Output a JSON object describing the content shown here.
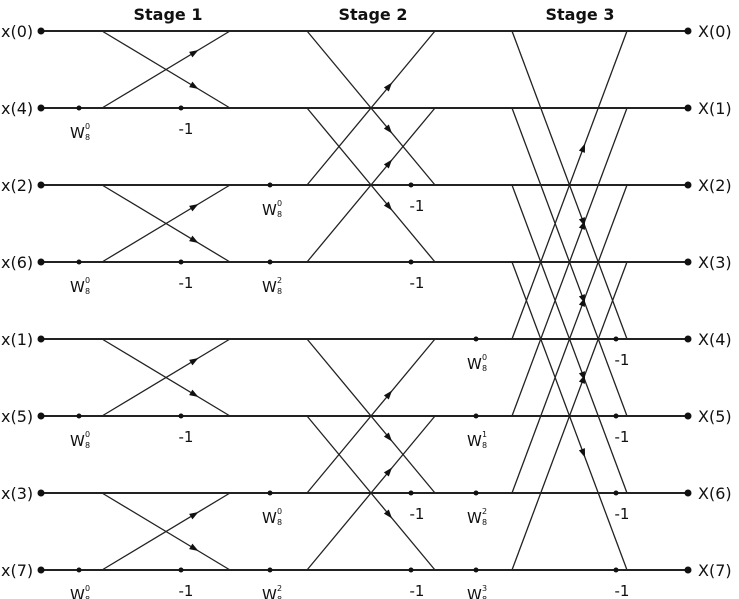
{
  "stages": [
    "Stage 1",
    "Stage 2",
    "Stage 3"
  ],
  "inputs": [
    "x(0)",
    "x(4)",
    "x(2)",
    "x(6)",
    "x(1)",
    "x(5)",
    "x(3)",
    "x(7)"
  ],
  "outputs": [
    "X(0)",
    "X(1)",
    "X(2)",
    "X(3)",
    "X(4)",
    "X(5)",
    "X(6)",
    "X(7)"
  ],
  "twiddle_base": "W",
  "twiddle_subscript": "8",
  "minus_one": "-1",
  "stage1": {
    "twiddles": [
      "0",
      "0",
      "0",
      "0"
    ]
  },
  "stage2": {
    "twiddles": [
      "0",
      "2",
      "0",
      "2"
    ]
  },
  "stage3": {
    "twiddles": [
      "0",
      "1",
      "2",
      "3"
    ]
  }
}
